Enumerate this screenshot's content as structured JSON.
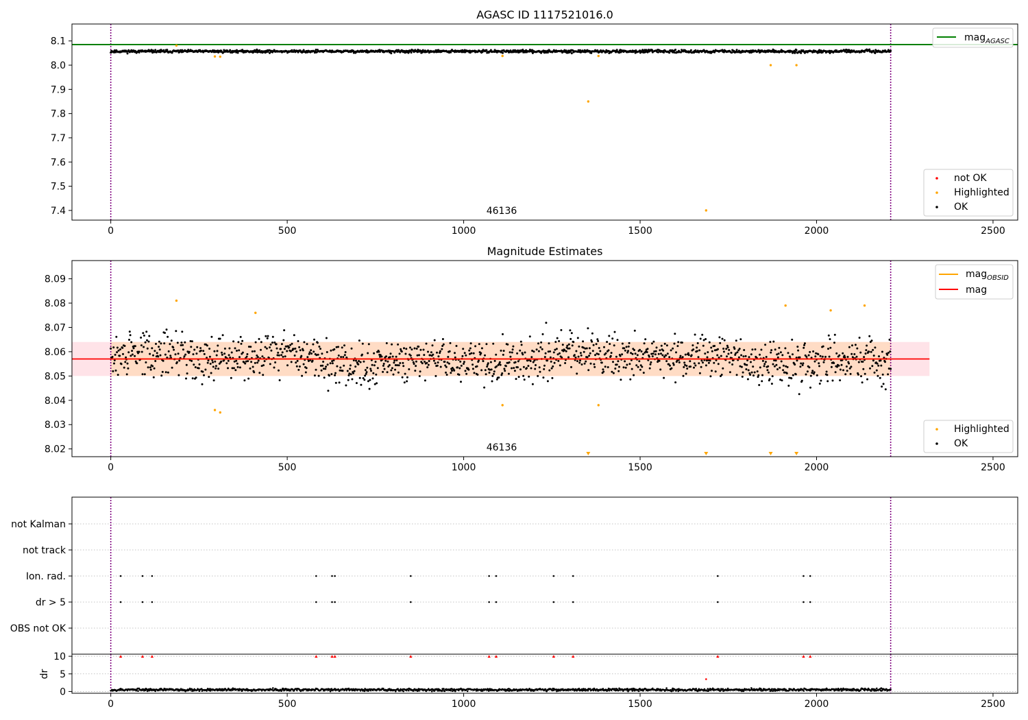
{
  "colors": {
    "ok": "#000000",
    "highlighted": "#ffa500",
    "not_ok": "#ff0000",
    "agasc_line": "#008000",
    "mag_line": "#ff0000",
    "mag_obsid_line": "#ffa500",
    "band": "#ffc0cb",
    "obs_band": "#ffdab9",
    "obs_boundary": "#800080"
  },
  "chart_data": [
    {
      "id": "panel1",
      "type": "scatter",
      "title": "AGASC ID 1117521016.0",
      "xlim": [
        -110,
        2570
      ],
      "ylim": [
        7.36,
        8.17
      ],
      "xticks": [
        0,
        500,
        1000,
        1500,
        2000,
        2500
      ],
      "yticks": [
        "8.1",
        "8.0",
        "7.9",
        "7.8",
        "7.7",
        "7.6",
        "7.5",
        "7.4"
      ],
      "grid": false,
      "obs_boundaries": [
        0,
        2210
      ],
      "obsid_label": {
        "x": 1105,
        "text": "46136"
      },
      "ok_series": {
        "name": "OK",
        "x_range": [
          0,
          2210
        ],
        "n": 1400,
        "mean": 8.057,
        "spread": 0.004
      },
      "highlighted": [
        [
          186,
          8.081
        ],
        [
          295,
          8.036
        ],
        [
          310,
          8.035
        ],
        [
          1110,
          8.038
        ],
        [
          1382,
          8.038
        ],
        [
          1870,
          8.0
        ],
        [
          1943,
          8.0
        ],
        [
          1353,
          7.85
        ],
        [
          1687,
          7.4
        ]
      ],
      "lines": [
        {
          "label": "mag_AGASC",
          "y": 8.085,
          "x_range": [
            -110,
            2570
          ]
        }
      ],
      "legend_top": {
        "position": "upper right",
        "entries": [
          {
            "label": "mag",
            "sub": "AGASC",
            "kind": "line"
          }
        ]
      },
      "legend_bottom": {
        "position": "lower right",
        "entries": [
          {
            "label": "not OK",
            "kind": "dot"
          },
          {
            "label": "Highlighted",
            "kind": "dot"
          },
          {
            "label": "OK",
            "kind": "dot"
          }
        ]
      }
    },
    {
      "id": "panel2",
      "type": "scatter",
      "title": "Magnitude Estimates",
      "xlim": [
        -110,
        2570
      ],
      "ylim": [
        8.0168,
        8.0975
      ],
      "xticks": [
        0,
        500,
        1000,
        1500,
        2000,
        2500
      ],
      "yticks": [
        "8.09",
        "8.08",
        "8.07",
        "8.06",
        "8.05",
        "8.04",
        "8.03",
        "8.02"
      ],
      "grid": false,
      "obs_boundaries": [
        0,
        2210
      ],
      "obsid_label": {
        "x": 1105,
        "text": "46136"
      },
      "mag": 8.057,
      "band": [
        8.05,
        8.064
      ],
      "band_x_range": [
        -110,
        2320
      ],
      "obs_band_x_range": [
        0,
        2210
      ],
      "ok_series": {
        "name": "OK",
        "x_range": [
          0,
          2210
        ],
        "n": 1400,
        "mean": 8.057,
        "spread": 0.0062
      },
      "highlighted": [
        [
          186,
          8.081
        ],
        [
          295,
          8.036
        ],
        [
          310,
          8.035
        ],
        [
          410,
          8.076
        ],
        [
          1110,
          8.038
        ],
        [
          1382,
          8.038
        ],
        [
          1912,
          8.079
        ],
        [
          2040,
          8.077
        ],
        [
          2136,
          8.079
        ]
      ],
      "offscale_markers": [
        1353,
        1687,
        1870,
        1943
      ],
      "legend_top": {
        "position": "upper right",
        "entries": [
          {
            "label": "mag",
            "sub": "OBSID",
            "kind": "line"
          },
          {
            "label": "mag",
            "kind": "line"
          }
        ]
      },
      "legend_bottom": {
        "position": "lower right",
        "entries": [
          {
            "label": "Highlighted",
            "kind": "dot"
          },
          {
            "label": "OK",
            "kind": "dot"
          }
        ]
      }
    },
    {
      "id": "panel3",
      "type": "scatter",
      "xlim": [
        -110,
        2570
      ],
      "grid": true,
      "obs_boundaries": [
        0,
        2210
      ],
      "categories": [
        "not Kalman",
        "not track",
        "Ion. rad.",
        "dr > 5",
        "OBS not OK"
      ],
      "flag_x": [
        28,
        90,
        117,
        582,
        627,
        635,
        850,
        1072,
        1092,
        1255,
        1310,
        1720,
        1963,
        1982
      ],
      "flagged_rows": [
        "Ion. rad.",
        "dr > 5"
      ]
    },
    {
      "id": "panel4",
      "type": "scatter",
      "ylabel": "dr",
      "xlim": [
        -110,
        2570
      ],
      "ylim": [
        -0.5,
        10.6
      ],
      "xticks": [
        0,
        500,
        1000,
        1500,
        2000,
        2500
      ],
      "yticks": [
        "10",
        "5",
        "0"
      ],
      "grid": true,
      "obs_boundaries": [
        0,
        2210
      ],
      "dr_series": {
        "x_range": [
          0,
          2210
        ],
        "n": 1400,
        "mean": 0.5,
        "spread": 0.25
      },
      "not_ok_points": [
        [
          28,
          10
        ],
        [
          90,
          10
        ],
        [
          117,
          10
        ],
        [
          582,
          10
        ],
        [
          627,
          10
        ],
        [
          635,
          10
        ],
        [
          850,
          10
        ],
        [
          1072,
          10
        ],
        [
          1092,
          10
        ],
        [
          1255,
          10
        ],
        [
          1310,
          10
        ],
        [
          1720,
          10
        ],
        [
          1963,
          10
        ],
        [
          1982,
          10
        ],
        [
          1687,
          3.5
        ]
      ]
    }
  ]
}
